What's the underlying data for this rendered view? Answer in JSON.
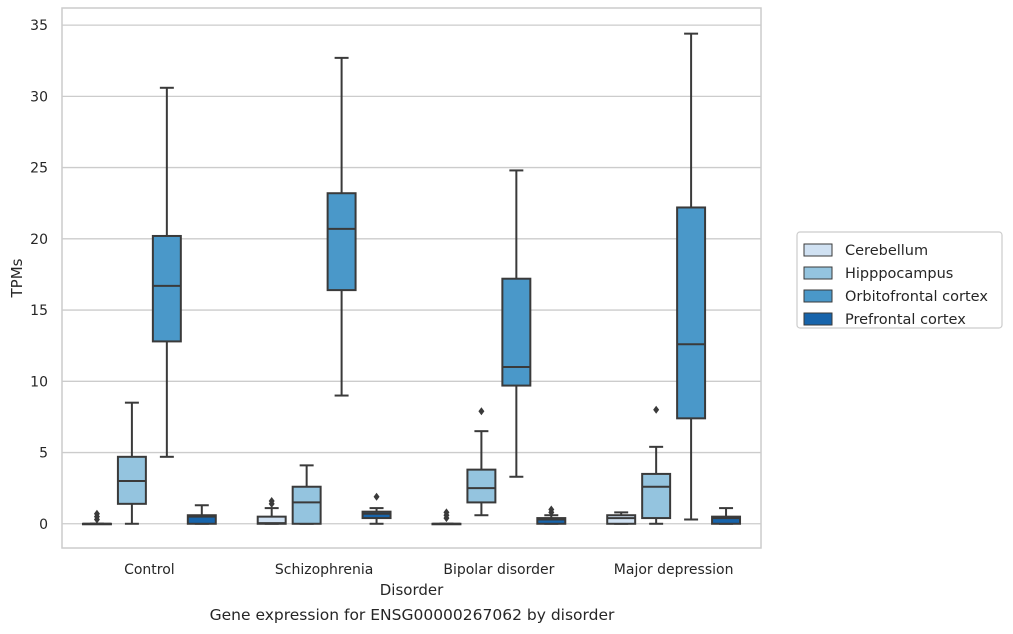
{
  "caption": "Gene expression for ENSG00000267062 by disorder",
  "colors": {
    "Cerebellum": "#d0e1f2",
    "Hipppocampus": "#94c4df",
    "Orbitofrontal cortex": "#4a98c9",
    "Prefrontal cortex": "#1764ab",
    "edge": "#3a3a3a",
    "grid": "#cccccc"
  },
  "chart_data": {
    "type": "box",
    "title": "",
    "xlabel": "Disorder",
    "ylabel": "TPMs",
    "ylim": [
      -1.7,
      36.2
    ],
    "yticks": [
      0,
      5,
      10,
      15,
      20,
      25,
      30,
      35
    ],
    "grid": "horizontal",
    "legend_position": "right",
    "categories": [
      "Control",
      "Schizophrenia",
      "Bipolar disorder",
      "Major depression"
    ],
    "series": [
      {
        "name": "Cerebellum",
        "boxes": [
          {
            "whisker_low": 0,
            "q1": 0,
            "median": 0,
            "q3": 0,
            "whisker_high": 0,
            "outliers": [
              0.3,
              0.5,
              0.7
            ]
          },
          {
            "whisker_low": 0,
            "q1": 0,
            "median": 0.05,
            "q3": 0.5,
            "whisker_high": 1.1,
            "outliers": [
              1.4,
              1.6
            ]
          },
          {
            "whisker_low": 0,
            "q1": 0,
            "median": 0,
            "q3": 0,
            "whisker_high": 0,
            "outliers": [
              0.4,
              0.6,
              0.8
            ]
          },
          {
            "whisker_low": 0,
            "q1": 0,
            "median": 0.4,
            "q3": 0.6,
            "whisker_high": 0.8,
            "outliers": []
          }
        ]
      },
      {
        "name": "Hipppocampus",
        "boxes": [
          {
            "whisker_low": 0,
            "q1": 1.4,
            "median": 3.0,
            "q3": 4.7,
            "whisker_high": 8.5,
            "outliers": []
          },
          {
            "whisker_low": 0,
            "q1": 0,
            "median": 1.5,
            "q3": 2.6,
            "whisker_high": 4.1,
            "outliers": []
          },
          {
            "whisker_low": 0.6,
            "q1": 1.5,
            "median": 2.5,
            "q3": 3.8,
            "whisker_high": 6.5,
            "outliers": [
              7.9
            ]
          },
          {
            "whisker_low": 0,
            "q1": 0.4,
            "median": 2.6,
            "q3": 3.5,
            "whisker_high": 5.4,
            "outliers": [
              8.0
            ]
          }
        ]
      },
      {
        "name": "Orbitofrontal cortex",
        "boxes": [
          {
            "whisker_low": 4.7,
            "q1": 12.8,
            "median": 16.7,
            "q3": 20.2,
            "whisker_high": 30.6,
            "outliers": []
          },
          {
            "whisker_low": 9.0,
            "q1": 16.4,
            "median": 20.7,
            "q3": 23.2,
            "whisker_high": 32.7,
            "outliers": []
          },
          {
            "whisker_low": 3.3,
            "q1": 9.7,
            "median": 11.0,
            "q3": 17.2,
            "whisker_high": 24.8,
            "outliers": []
          },
          {
            "whisker_low": 0.3,
            "q1": 7.4,
            "median": 12.6,
            "q3": 22.2,
            "whisker_high": 34.4,
            "outliers": []
          }
        ]
      },
      {
        "name": "Prefrontal cortex",
        "boxes": [
          {
            "whisker_low": 0,
            "q1": 0,
            "median": 0.5,
            "q3": 0.6,
            "whisker_high": 1.3,
            "outliers": []
          },
          {
            "whisker_low": 0,
            "q1": 0.4,
            "median": 0.7,
            "q3": 0.85,
            "whisker_high": 1.1,
            "outliers": [
              1.9
            ]
          },
          {
            "whisker_low": 0,
            "q1": 0,
            "median": 0.3,
            "q3": 0.4,
            "whisker_high": 0.6,
            "outliers": [
              0.8,
              1.0
            ]
          },
          {
            "whisker_low": 0,
            "q1": 0,
            "median": 0.4,
            "q3": 0.5,
            "whisker_high": 1.1,
            "outliers": []
          }
        ]
      }
    ]
  }
}
